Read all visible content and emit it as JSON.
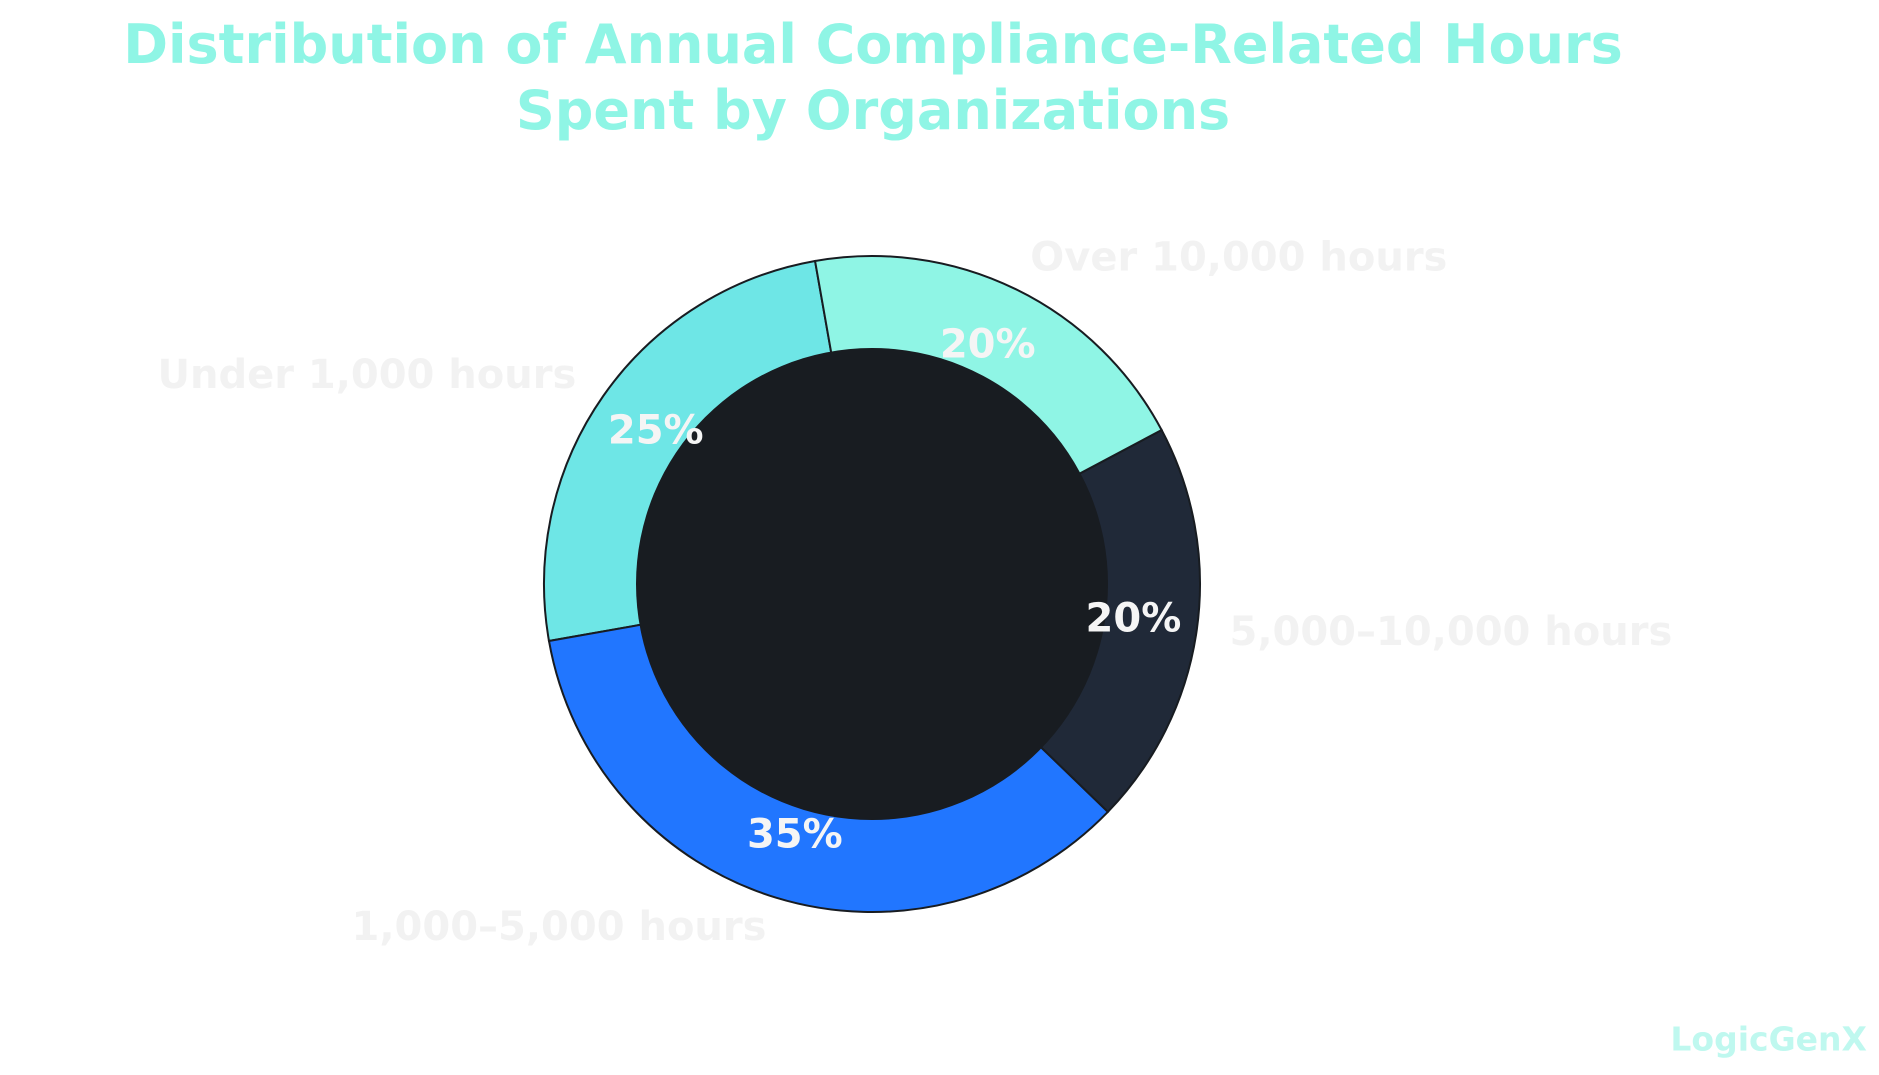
{
  "chart_data": {
    "type": "donut",
    "title": "Distribution of Annual Compliance-Related Hours\nSpent by Organizations",
    "categories": [
      "Under 1,000 hours",
      "1,000–5,000 hours",
      "5,000–10,000 hours",
      "Over 10,000 hours"
    ],
    "values": [
      25,
      35,
      20,
      20
    ],
    "value_labels": [
      "25%",
      "35%",
      "20%",
      "20%"
    ],
    "colors": [
      "#6ee6e6",
      "#2176ff",
      "#202938",
      "#8ff5e5"
    ],
    "watermark": "LogicGenX"
  }
}
